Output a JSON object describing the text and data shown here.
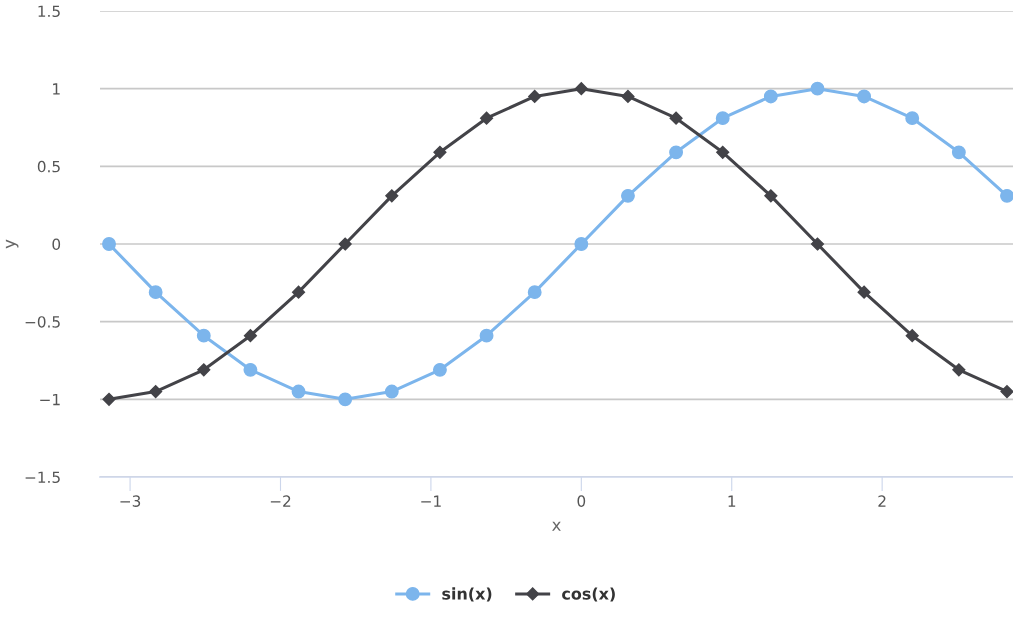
{
  "chart_data": {
    "type": "line",
    "xlabel": "x",
    "ylabel": "y",
    "x": [
      -3.14,
      -2.83,
      -2.51,
      -2.2,
      -1.88,
      -1.57,
      -1.26,
      -0.94,
      -0.63,
      -0.31,
      0,
      0.31,
      0.63,
      0.94,
      1.26,
      1.57,
      1.88,
      2.2,
      2.51,
      2.83
    ],
    "series": [
      {
        "name": "sin(x)",
        "color": "#7cb5ec",
        "marker": "circle",
        "values": [
          0,
          -0.31,
          -0.59,
          -0.81,
          -0.95,
          -1,
          -0.95,
          -0.81,
          -0.59,
          -0.31,
          0,
          0.31,
          0.59,
          0.81,
          0.95,
          1,
          0.95,
          0.81,
          0.59,
          0.31
        ]
      },
      {
        "name": "cos(x)",
        "color": "#434348",
        "marker": "diamond",
        "values": [
          -1,
          -0.95,
          -0.81,
          -0.59,
          -0.31,
          0,
          0.31,
          0.59,
          0.81,
          0.95,
          1,
          0.95,
          0.81,
          0.59,
          0.31,
          0,
          -0.31,
          -0.59,
          -0.81,
          -0.95
        ]
      }
    ],
    "xlim": [
      -3.2,
      2.87
    ],
    "xticks": [
      {
        "value": -3,
        "label": "−3"
      },
      {
        "value": -2,
        "label": "−2"
      },
      {
        "value": -1,
        "label": "−1"
      },
      0,
      1,
      2
    ],
    "ylim": [
      -1.5,
      1.5
    ],
    "yticks": [
      {
        "value": -1.5,
        "label": "−1.5"
      },
      {
        "value": -1,
        "label": "−1"
      },
      {
        "value": -0.5,
        "label": "−0.5"
      },
      0,
      0.5,
      1,
      1.5
    ],
    "grid": "y",
    "legend": "bottom",
    "line_style": "solid"
  }
}
